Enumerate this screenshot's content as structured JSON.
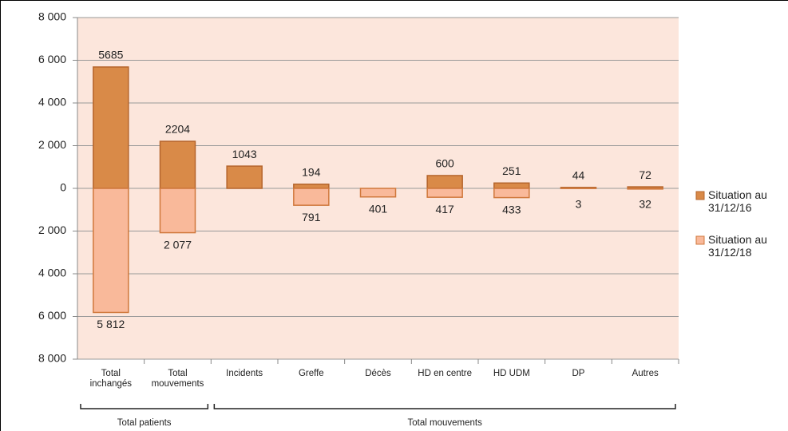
{
  "chart_data": {
    "type": "bar",
    "categories": [
      "Total inchangés",
      "Total mouvements",
      "Incidents",
      "Greffe",
      "Décès",
      "HD en centre",
      "HD UDM",
      "DP",
      "Autres"
    ],
    "series": [
      {
        "name": "Situation au 31/12/16",
        "color": "#d98a48",
        "edge": "#b5652c",
        "values": [
          5685,
          2204,
          1043,
          194,
          0,
          600,
          251,
          44,
          72
        ]
      },
      {
        "name": "Situation au 31/12/18",
        "color": "#f9b99a",
        "edge": "#d0783c",
        "values": [
          -5812,
          -2077,
          0,
          -791,
          -401,
          -417,
          -433,
          -3,
          -32
        ],
        "value_labels": [
          "5 812",
          "2 077",
          null,
          "791",
          "401",
          "417",
          "433",
          "3",
          "32"
        ]
      }
    ],
    "value_labels_series0": null,
    "groups": [
      {
        "name": "Total patients",
        "count": 2
      },
      {
        "name": "Total mouvements",
        "count": 7
      }
    ],
    "ylim": [
      -8000,
      8000
    ],
    "yticks": [
      {
        "value": -8000,
        "label": "8 000"
      },
      {
        "value": -6000,
        "label": "6 000"
      },
      {
        "value": -4000,
        "label": "4 000"
      },
      {
        "value": -2000,
        "label": "2 000"
      },
      0,
      {
        "value": 2000,
        "label": "2 000"
      },
      {
        "value": 4000,
        "label": "4 000"
      },
      {
        "value": 6000,
        "label": "6 000"
      },
      {
        "value": 8000,
        "label": "8 000"
      }
    ],
    "grid": true,
    "legend": "right",
    "plot_background": "#fce6dc"
  }
}
